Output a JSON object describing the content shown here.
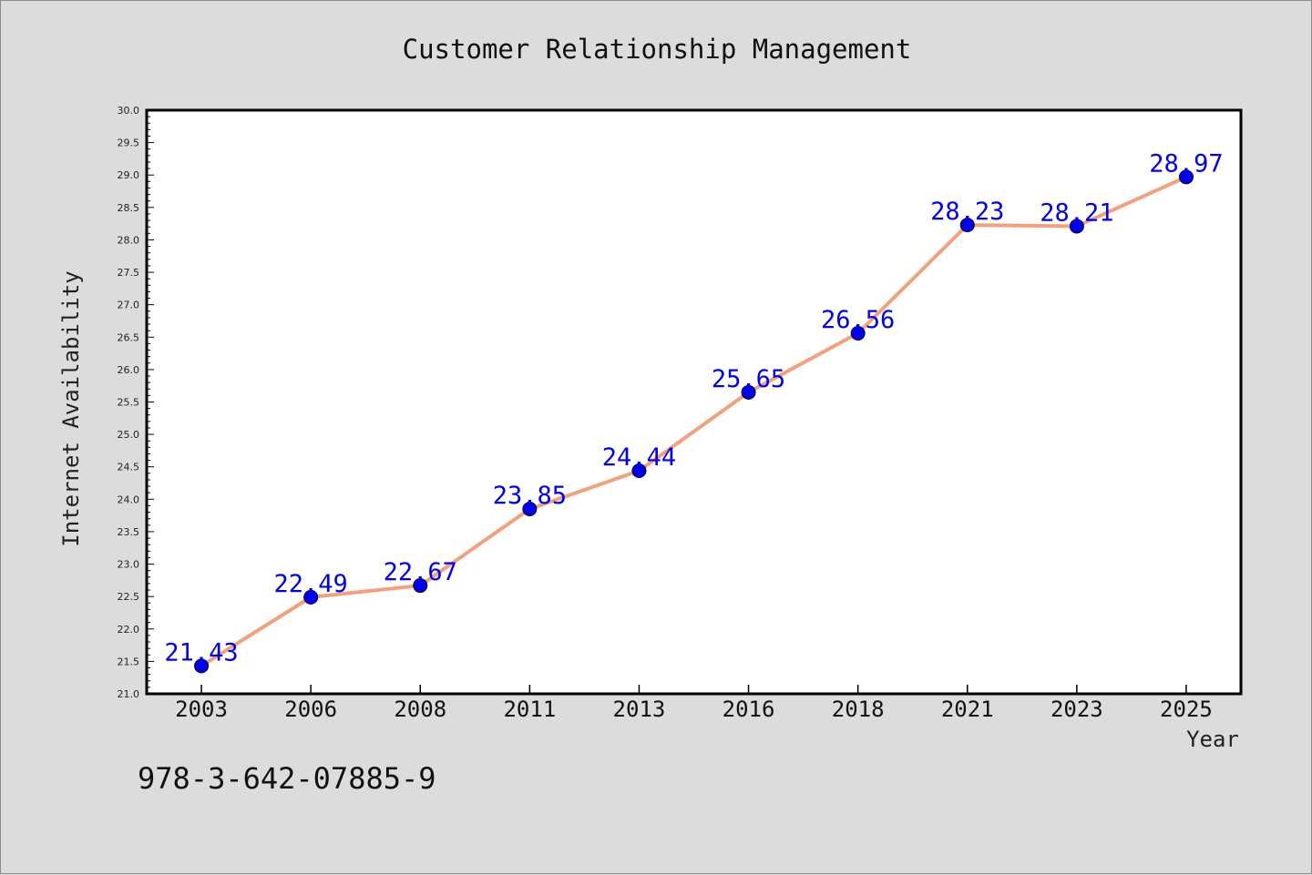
{
  "chart_data": {
    "type": "line",
    "title": "Customer Relationship Management",
    "xlabel": "Year",
    "ylabel": "Internet Availability",
    "categories": [
      "2003",
      "2006",
      "2008",
      "2011",
      "2013",
      "2016",
      "2018",
      "2021",
      "2023",
      "2025"
    ],
    "values": [
      21.43,
      22.49,
      22.67,
      23.85,
      24.44,
      25.65,
      26.56,
      28.23,
      28.21,
      28.97
    ],
    "data_labels": [
      "21.43",
      "22.49",
      "22.67",
      "23.85",
      "24.44",
      "25.65",
      "26.56",
      "28.23",
      "28.21",
      "28.97"
    ],
    "ylim": [
      21.0,
      30.0
    ],
    "yticks": [
      "21.0",
      "21.5",
      "22.0",
      "22.5",
      "23.0",
      "23.5",
      "24.0",
      "24.5",
      "25.0",
      "25.5",
      "26.0",
      "26.5",
      "27.0",
      "27.5",
      "28.0",
      "28.5",
      "29.0",
      "29.5",
      "30.0"
    ],
    "grid": false,
    "legend": "none",
    "colors": {
      "line": "#f4a07c",
      "marker": "#0000ee",
      "labels": "#0000ee",
      "background": "#dcdcdc",
      "plot_background": "#ffffff"
    }
  },
  "footer": {
    "isbn": "978-3-642-07885-9"
  }
}
